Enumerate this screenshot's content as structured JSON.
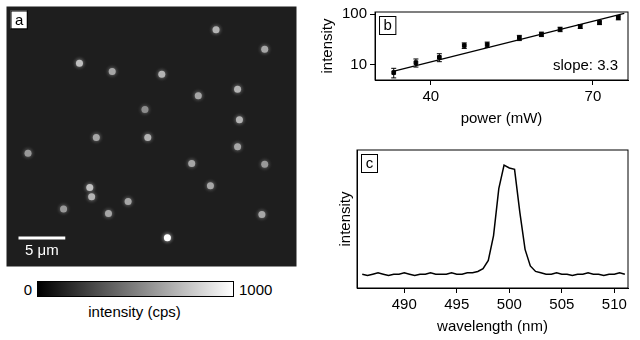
{
  "chart_data": [
    {
      "panel": "a",
      "type": "image",
      "xlim": [
        0,
        31
      ],
      "ylim": [
        0,
        28
      ],
      "tick_labels": false,
      "spots": {
        "x": [
          22.4,
          27.6,
          7.8,
          11.3,
          16.6,
          20.5,
          24.7,
          14.8,
          24.9,
          9.6,
          15.1,
          24.7,
          2.3,
          19.8,
          27.6,
          8.9,
          9.1,
          21.8,
          13.0,
          6.1,
          10.9,
          27.3,
          17.2
        ],
        "y": [
          2.5,
          4.6,
          6.1,
          7.0,
          7.3,
          9.6,
          8.9,
          11.1,
          12.2,
          14.1,
          14.1,
          15.1,
          15.8,
          16.9,
          17.0,
          19.5,
          20.5,
          19.3,
          21.0,
          21.8,
          22.3,
          22.4,
          24.9
        ],
        "intensity": [
          700,
          650,
          750,
          650,
          700,
          650,
          700,
          550,
          700,
          650,
          700,
          650,
          600,
          650,
          600,
          750,
          700,
          650,
          650,
          600,
          650,
          650,
          1000
        ]
      },
      "scale_bar": {
        "length": 5,
        "label": "5 μm"
      },
      "colorbar": {
        "range": [
          0,
          1000
        ],
        "ticks": [
          0,
          1000
        ],
        "label": "intensity (cps)"
      }
    },
    {
      "panel": "b",
      "type": "scatter",
      "log": true,
      "grid": false,
      "marker": "square",
      "color": "#000000",
      "x_label": "power (mW)",
      "y_label": "intensity",
      "xlim": [
        33,
        79
      ],
      "xticks": [
        40,
        70
      ],
      "ylim": [
        5,
        110
      ],
      "yticks": [
        10,
        100
      ],
      "x": [
        35.2,
        38.0,
        41.2,
        44.9,
        48.6,
        54.3,
        58.6,
        62.5,
        67.0,
        71.6,
        76.4
      ],
      "values": [
        7,
        11,
        14,
        24,
        25,
        34,
        40,
        50,
        57,
        68,
        85
      ],
      "errors": [
        1.5,
        2,
        2.5,
        3,
        3,
        4,
        4,
        5,
        5,
        6,
        8
      ],
      "fit": {
        "x": [
          35,
          78
        ],
        "values": [
          7.3,
          103
        ],
        "line_style": "solid"
      },
      "annotations": [
        "slope: 3.3"
      ]
    },
    {
      "panel": "c",
      "type": "line",
      "grid": false,
      "tick_labels": "x",
      "color": "#000000",
      "line_style": "solid",
      "x_label": "wavelength (nm)",
      "y_label": "intensity",
      "xlim": [
        485.5,
        511.3
      ],
      "xticks": [
        490,
        495,
        500,
        505,
        510
      ],
      "ylim": [
        0,
        1
      ],
      "x": [
        486,
        486.5,
        487,
        487.5,
        488,
        488.5,
        489,
        489.5,
        490,
        490.5,
        491,
        491.5,
        492,
        492.5,
        493,
        493.5,
        494,
        494.5,
        495,
        495.5,
        496,
        496.5,
        497,
        497.5,
        498,
        498.5,
        499,
        499.5,
        500,
        500.5,
        501,
        501.5,
        502,
        502.5,
        503,
        503.5,
        504,
        504.5,
        505,
        505.5,
        506,
        506.5,
        507,
        507.5,
        508,
        508.5,
        509,
        509.5,
        510,
        510.5,
        511
      ],
      "values": [
        0.1,
        0.09,
        0.1,
        0.11,
        0.1,
        0.09,
        0.1,
        0.1,
        0.11,
        0.1,
        0.09,
        0.1,
        0.1,
        0.11,
        0.1,
        0.1,
        0.1,
        0.11,
        0.1,
        0.1,
        0.11,
        0.11,
        0.12,
        0.14,
        0.2,
        0.38,
        0.72,
        0.89,
        0.87,
        0.86,
        0.55,
        0.28,
        0.16,
        0.12,
        0.11,
        0.1,
        0.1,
        0.11,
        0.1,
        0.1,
        0.09,
        0.1,
        0.1,
        0.11,
        0.1,
        0.1,
        0.09,
        0.1,
        0.1,
        0.11,
        0.1
      ]
    }
  ]
}
